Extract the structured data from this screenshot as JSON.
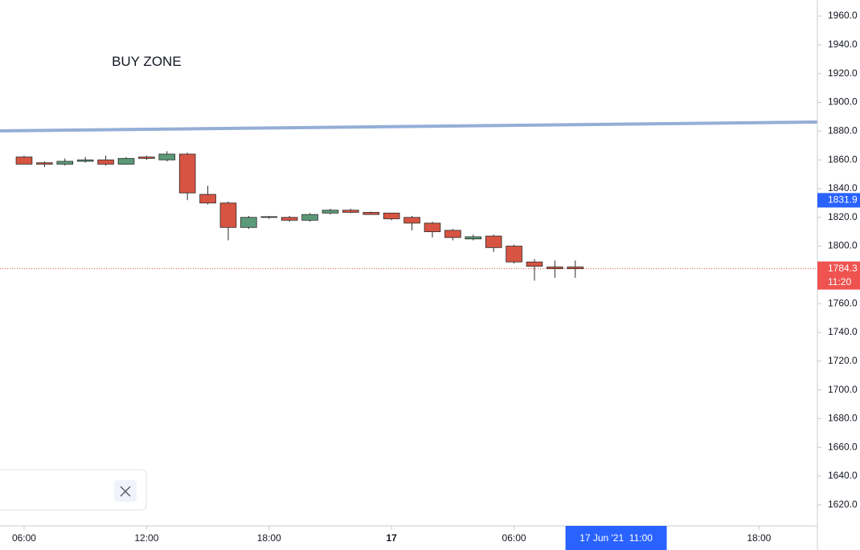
{
  "chart_data": {
    "type": "candlestick",
    "x": [
      0,
      1,
      2,
      3,
      4,
      5,
      6,
      7,
      8,
      9,
      10,
      11,
      12,
      13,
      14,
      15,
      16,
      17,
      18,
      19,
      20,
      21,
      22,
      23,
      24,
      25,
      26,
      27
    ],
    "open": [
      1862,
      1858,
      1857,
      1859,
      1860,
      1857,
      1862,
      1860,
      1864,
      1836,
      1830,
      1813,
      1820,
      1820,
      1818,
      1823,
      1825,
      1823.5,
      1823,
      1820,
      1816,
      1811,
      1805,
      1807,
      1800,
      1789,
      1785.5,
      1785.5
    ],
    "high": [
      1863,
      1859,
      1861,
      1862,
      1863,
      1862,
      1863,
      1866,
      1865,
      1842,
      1831,
      1821,
      1821,
      1821,
      1823,
      1826,
      1826,
      1824,
      1823,
      1821,
      1817,
      1812,
      1808,
      1808,
      1801,
      1791,
      1790,
      1790
    ],
    "low": [
      1857,
      1855,
      1856,
      1858,
      1856,
      1857,
      1860,
      1859,
      1832,
      1829,
      1804,
      1812,
      1819,
      1817,
      1817,
      1822,
      1823,
      1822,
      1818,
      1811,
      1806,
      1804,
      1804,
      1796,
      1788,
      1776,
      1778,
      1778
    ],
    "close": [
      1857,
      1857,
      1859,
      1860,
      1857,
      1861,
      1861,
      1864,
      1837,
      1830,
      1813,
      1820,
      1820.5,
      1818,
      1822,
      1825,
      1823.5,
      1822,
      1819,
      1816,
      1810,
      1806,
      1806.5,
      1799,
      1789,
      1786,
      1784.3,
      1784.3
    ],
    "up_color": "#5b9a78",
    "down_color": "#d75442",
    "xlim": [
      -1.18,
      38.86
    ],
    "xticks": [
      {
        "value": 0,
        "label": "06:00"
      },
      {
        "value": 6,
        "label": "12:00"
      },
      {
        "value": 12,
        "label": "18:00"
      },
      {
        "value": 18,
        "label": "17"
      },
      {
        "value": 24,
        "label": "06:00"
      },
      {
        "value": 36,
        "label": "18:00"
      }
    ],
    "ylim": [
      1605.4,
      1971.2
    ],
    "yticks": [
      {
        "value": 1620,
        "label": "1620.0"
      },
      {
        "value": 1640,
        "label": "1640.0"
      },
      {
        "value": 1660,
        "label": "1660.0"
      },
      {
        "value": 1680,
        "label": "1680.0"
      },
      {
        "value": 1700,
        "label": "1700.0"
      },
      {
        "value": 1720,
        "label": "1720.0"
      },
      {
        "value": 1740,
        "label": "1740.0"
      },
      {
        "value": 1760,
        "label": "1760.0"
      },
      {
        "value": 1780,
        "label": "1780.0"
      },
      {
        "value": 1800,
        "label": "1800.0"
      },
      {
        "value": 1820,
        "label": "1820.0"
      },
      {
        "value": 1840,
        "label": "1840.0"
      },
      {
        "value": 1860,
        "label": "1860.0"
      },
      {
        "value": 1880,
        "label": "1880.0"
      },
      {
        "value": 1900,
        "label": "1900.0"
      },
      {
        "value": 1920,
        "label": "1920.0"
      },
      {
        "value": 1940,
        "label": "1940.0"
      },
      {
        "value": 1960,
        "label": "1960.0"
      }
    ],
    "annotation": {
      "text": "BUY ZONE",
      "x": 6,
      "y": 1928
    },
    "trendline": {
      "y_start": 1880.2,
      "y_end": 1886.3,
      "color": "#94aed6"
    },
    "price_line": {
      "value": 1784.3,
      "color": "#d75442"
    },
    "price_tags": [
      {
        "value": 1831.9,
        "label": "1831.9",
        "color": "#2962ff"
      },
      {
        "value": 1784.3,
        "label": "1784.3",
        "sublabel": "11:20",
        "color": "#ef5350"
      }
    ],
    "crosshair": {
      "x": 29,
      "label": "17 Jun '21  11:00",
      "color": "#2962ff"
    }
  }
}
